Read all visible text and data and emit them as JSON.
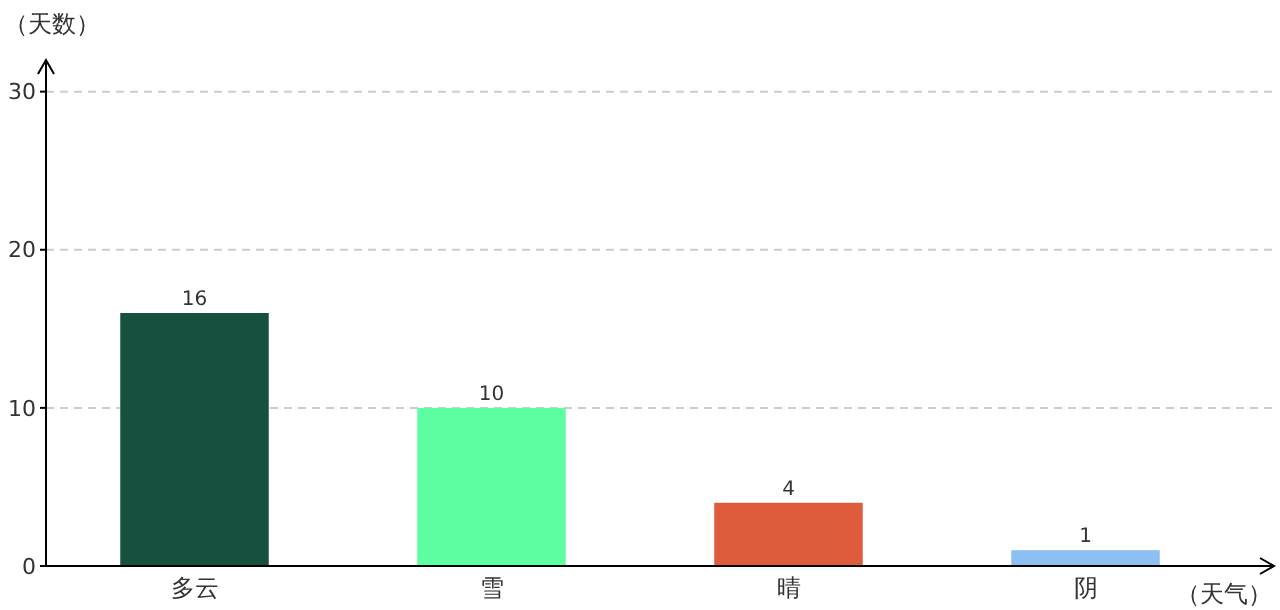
{
  "chart_data": {
    "type": "bar",
    "xlabel": "（天气）",
    "ylabel": "（天数）",
    "categories": [
      "多云",
      "雪",
      "晴",
      "阴"
    ],
    "values": [
      16,
      10,
      4,
      1
    ],
    "colors": [
      "#17503f",
      "#5efea2",
      "#de5c3b",
      "#8cbff2"
    ],
    "ylim": [
      0,
      32
    ],
    "yticks": [
      0,
      10,
      20,
      30
    ],
    "grid": "y",
    "data_labels": true
  }
}
